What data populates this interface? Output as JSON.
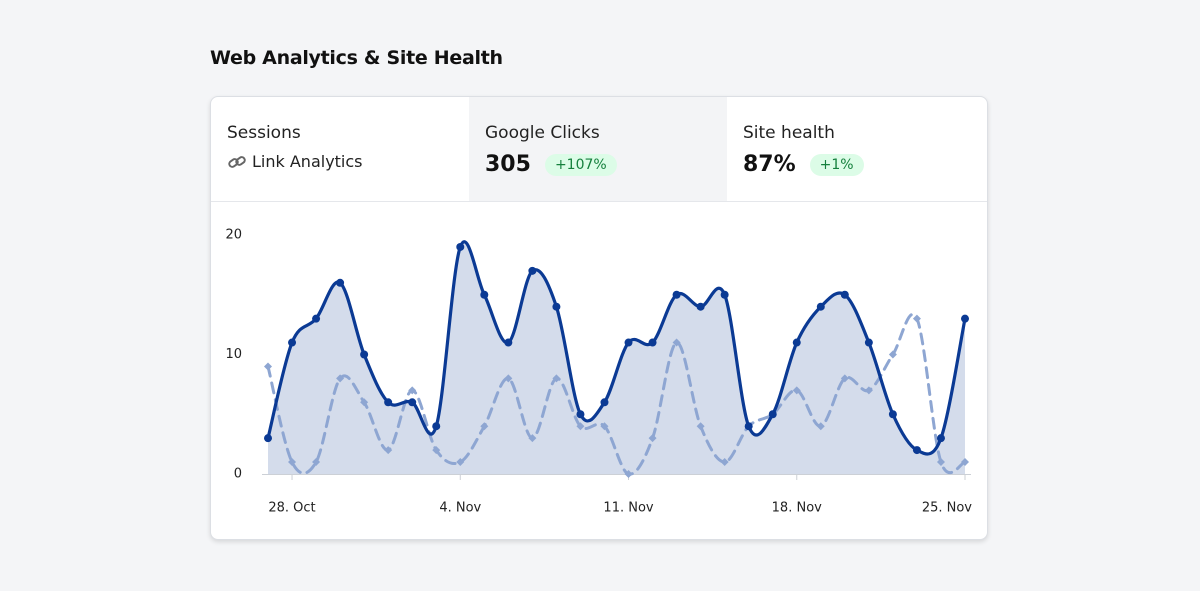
{
  "title": "Web Analytics & Site Health",
  "metrics": [
    {
      "label": "Sessions",
      "link": "Link Analytics"
    },
    {
      "label": "Google Clicks",
      "value": "305",
      "change": "+107%"
    },
    {
      "label": "Site health",
      "value": "87%",
      "change": "+1%"
    }
  ],
  "chart_data": {
    "type": "line",
    "categories": [
      null,
      "28. Oct",
      null,
      null,
      null,
      null,
      null,
      null,
      "4. Nov",
      null,
      null,
      null,
      null,
      null,
      null,
      "11. Nov",
      null,
      null,
      null,
      null,
      null,
      null,
      "18. Nov",
      null,
      null,
      null,
      null,
      null,
      null,
      "25. Nov"
    ],
    "series": [
      {
        "color": "#0b3a94",
        "style": "solid",
        "fill": true,
        "values": [
          3,
          11,
          13,
          16,
          10,
          6,
          6,
          4,
          19,
          15,
          11,
          17,
          14,
          5,
          6,
          11,
          11,
          15,
          14,
          15,
          4,
          5,
          11,
          14,
          15,
          11,
          5,
          2,
          3,
          13
        ]
      },
      {
        "color": "#8ea6d2",
        "style": "dashed",
        "fill": false,
        "values": [
          9,
          1,
          1,
          8,
          6,
          2,
          7,
          2,
          1,
          4,
          8,
          3,
          8,
          4,
          4,
          0,
          3,
          11,
          4,
          1,
          4,
          5,
          7,
          4,
          8,
          7,
          10,
          13,
          1,
          1
        ]
      }
    ],
    "ylim": [
      0,
      20
    ],
    "yticks": [
      0,
      10,
      20
    ],
    "grid": false
  }
}
